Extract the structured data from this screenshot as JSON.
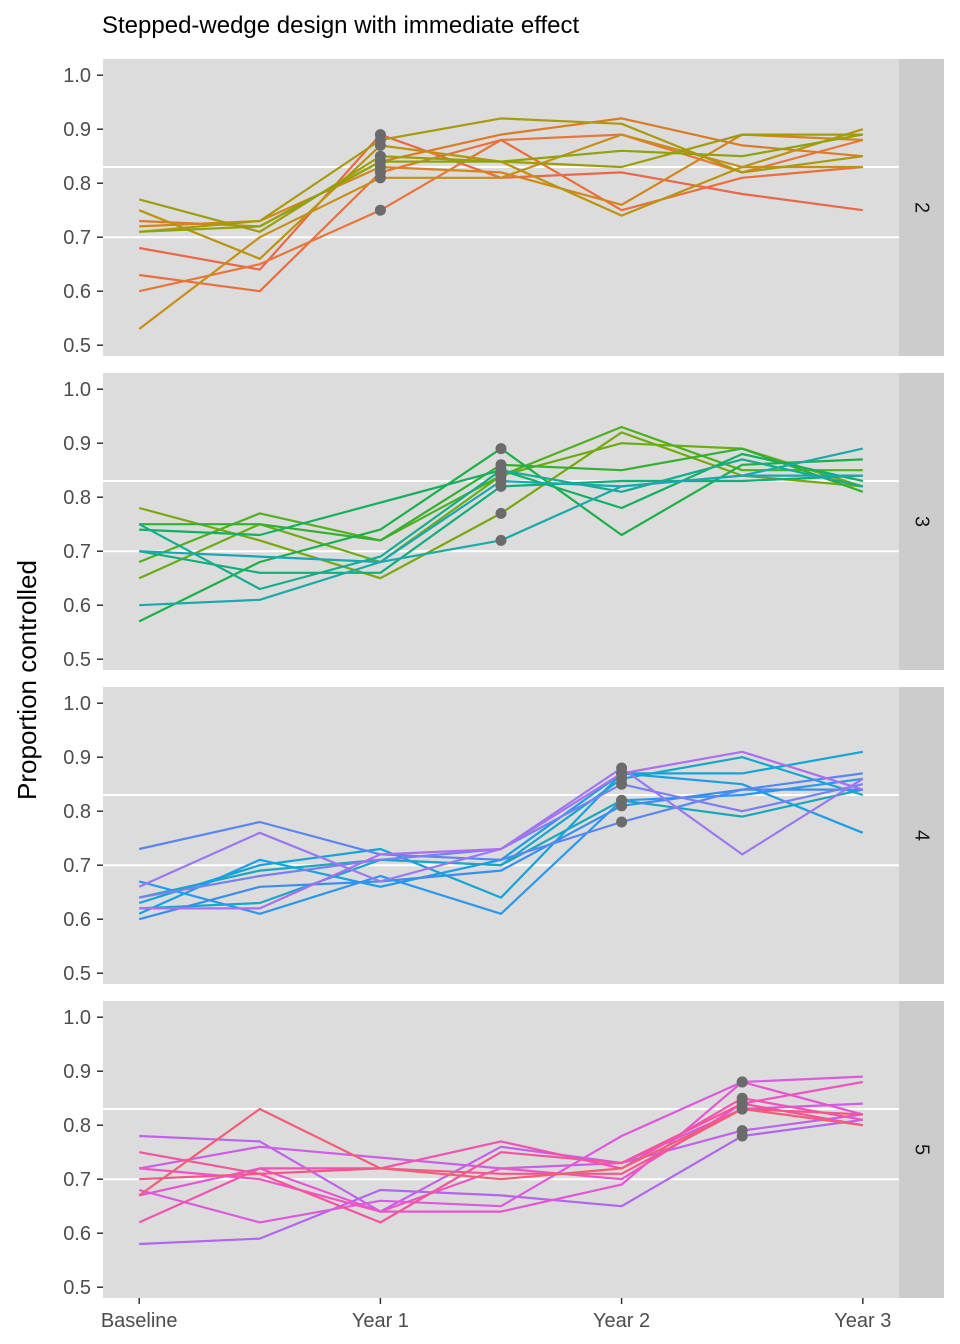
{
  "chart_data": {
    "type": "line",
    "title": "Stepped-wedge design with immediate effect",
    "xlabel": "",
    "ylabel": "Proportion controlled",
    "x_tick_labels": [
      "Baseline",
      "Year 1",
      "Year 2",
      "Year 3"
    ],
    "x": [
      0,
      0.5,
      1,
      1.5,
      2,
      2.5,
      3
    ],
    "y_ticks": [
      "0.5",
      "0.6",
      "0.7",
      "0.8",
      "0.9",
      "1.0"
    ],
    "ylim": [
      0.48,
      1.03
    ],
    "grid": true,
    "reference_lines": [
      0.7,
      0.83
    ],
    "point_color": "#6b6b6b",
    "panel_background": "#dcdcdc",
    "strip_background": "#cccccc",
    "legend": "none",
    "panels": [
      {
        "strip": "2",
        "intervention_x": 1,
        "series": [
          {
            "color": "#e8684a",
            "values": [
              0.68,
              0.64,
              0.89,
              0.81,
              0.82,
              0.78,
              0.75
            ]
          },
          {
            "color": "#ec6e3a",
            "values": [
              0.63,
              0.6,
              0.82,
              0.88,
              0.75,
              0.81,
              0.83
            ]
          },
          {
            "color": "#e8763a",
            "values": [
              0.6,
              0.65,
              0.75,
              0.88,
              0.89,
              0.82,
              0.88
            ]
          },
          {
            "color": "#dc7b26",
            "values": [
              0.73,
              0.72,
              0.84,
              0.89,
              0.92,
              0.87,
              0.85
            ]
          },
          {
            "color": "#d4851c",
            "values": [
              0.72,
              0.73,
              0.83,
              0.82,
              0.76,
              0.89,
              0.88
            ]
          },
          {
            "color": "#c88f16",
            "values": [
              0.53,
              0.7,
              0.81,
              0.81,
              0.89,
              0.83,
              0.83
            ]
          },
          {
            "color": "#b9950f",
            "values": [
              0.75,
              0.66,
              0.87,
              0.84,
              0.74,
              0.83,
              0.9
            ]
          },
          {
            "color": "#a99a0c",
            "values": [
              0.71,
              0.73,
              0.88,
              0.92,
              0.91,
              0.82,
              0.85
            ]
          },
          {
            "color": "#9d9e0a",
            "values": [
              0.77,
              0.71,
              0.85,
              0.84,
              0.83,
              0.89,
              0.89
            ]
          },
          {
            "color": "#8fa30a",
            "values": [
              0.71,
              0.72,
              0.84,
              0.84,
              0.86,
              0.85,
              0.89
            ]
          }
        ]
      },
      {
        "strip": "3",
        "intervention_x": 1.5,
        "series": [
          {
            "color": "#7aa80c",
            "values": [
              0.78,
              0.72,
              0.65,
              0.77,
              0.92,
              0.84,
              0.82
            ]
          },
          {
            "color": "#6aad12",
            "values": [
              0.65,
              0.75,
              0.68,
              0.84,
              0.9,
              0.89,
              0.82
            ]
          },
          {
            "color": "#4fb020",
            "values": [
              0.68,
              0.77,
              0.72,
              0.84,
              0.93,
              0.85,
              0.85
            ]
          },
          {
            "color": "#34b030",
            "values": [
              0.75,
              0.75,
              0.72,
              0.86,
              0.85,
              0.89,
              0.81
            ]
          },
          {
            "color": "#1cb048",
            "values": [
              0.57,
              0.68,
              0.74,
              0.89,
              0.73,
              0.86,
              0.87
            ]
          },
          {
            "color": "#12b060",
            "values": [
              0.74,
              0.73,
              0.79,
              0.85,
              0.78,
              0.88,
              0.83
            ]
          },
          {
            "color": "#12ae78",
            "values": [
              0.7,
              0.66,
              0.66,
              0.82,
              0.83,
              0.83,
              0.84
            ]
          },
          {
            "color": "#15ac90",
            "values": [
              0.75,
              0.63,
              0.69,
              0.85,
              0.81,
              0.87,
              0.82
            ]
          },
          {
            "color": "#1aaaa8",
            "values": [
              0.6,
              0.61,
              0.68,
              0.72,
              0.82,
              0.84,
              0.89
            ]
          },
          {
            "color": "#1ba6b4",
            "values": [
              0.7,
              0.69,
              0.68,
              0.83,
              0.82,
              0.84,
              0.84
            ]
          }
        ]
      },
      {
        "strip": "4",
        "intervention_x": 2,
        "series": [
          {
            "color": "#1aa8b8",
            "values": [
              0.64,
              0.69,
              0.71,
              0.7,
              0.82,
              0.79,
              0.84
            ]
          },
          {
            "color": "#16a8c8",
            "values": [
              0.62,
              0.63,
              0.71,
              0.7,
              0.86,
              0.9,
              0.83
            ]
          },
          {
            "color": "#14a4d8",
            "values": [
              0.63,
              0.7,
              0.73,
              0.64,
              0.87,
              0.87,
              0.91
            ]
          },
          {
            "color": "#1a9ee6",
            "values": [
              0.61,
              0.71,
              0.66,
              0.71,
              0.87,
              0.85,
              0.76
            ]
          },
          {
            "color": "#2a98ee",
            "values": [
              0.67,
              0.61,
              0.68,
              0.61,
              0.82,
              0.83,
              0.86
            ]
          },
          {
            "color": "#3b8ef0",
            "values": [
              0.6,
              0.66,
              0.67,
              0.69,
              0.81,
              0.84,
              0.84
            ]
          },
          {
            "color": "#5a86f2",
            "values": [
              0.73,
              0.78,
              0.72,
              0.71,
              0.78,
              0.84,
              0.87
            ]
          },
          {
            "color": "#7a80f2",
            "values": [
              0.64,
              0.68,
              0.71,
              0.73,
              0.85,
              0.8,
              0.85
            ]
          },
          {
            "color": "#9a78f0",
            "values": [
              0.66,
              0.76,
              0.67,
              0.73,
              0.88,
              0.72,
              0.86
            ]
          },
          {
            "color": "#ae6ef0",
            "values": [
              0.62,
              0.62,
              0.72,
              0.73,
              0.87,
              0.91,
              0.84
            ]
          }
        ]
      },
      {
        "strip": "5",
        "intervention_x": 2.5,
        "series": [
          {
            "color": "#b266ee",
            "values": [
              0.58,
              0.59,
              0.68,
              0.67,
              0.65,
              0.78,
              0.81
            ]
          },
          {
            "color": "#c062ea",
            "values": [
              0.78,
              0.77,
              0.64,
              0.76,
              0.73,
              0.79,
              0.82
            ]
          },
          {
            "color": "#cf5ee6",
            "values": [
              0.72,
              0.76,
              0.74,
              0.72,
              0.73,
              0.83,
              0.84
            ]
          },
          {
            "color": "#dc5ade",
            "values": [
              0.68,
              0.62,
              0.66,
              0.65,
              0.78,
              0.88,
              0.89
            ]
          },
          {
            "color": "#e656d4",
            "values": [
              0.67,
              0.72,
              0.64,
              0.64,
              0.69,
              0.88,
              0.82
            ]
          },
          {
            "color": "#ee54c4",
            "values": [
              0.72,
              0.7,
              0.64,
              0.72,
              0.7,
              0.84,
              0.88
            ]
          },
          {
            "color": "#f252b0",
            "values": [
              0.62,
              0.72,
              0.72,
              0.77,
              0.72,
              0.85,
              0.81
            ]
          },
          {
            "color": "#f4549c",
            "values": [
              0.75,
              0.71,
              0.62,
              0.75,
              0.73,
              0.84,
              0.8
            ]
          },
          {
            "color": "#f45888",
            "values": [
              0.7,
              0.71,
              0.72,
              0.71,
              0.71,
              0.83,
              0.82
            ]
          },
          {
            "color": "#f25e76",
            "values": [
              0.67,
              0.83,
              0.72,
              0.7,
              0.72,
              0.83,
              0.8
            ]
          }
        ]
      }
    ]
  }
}
